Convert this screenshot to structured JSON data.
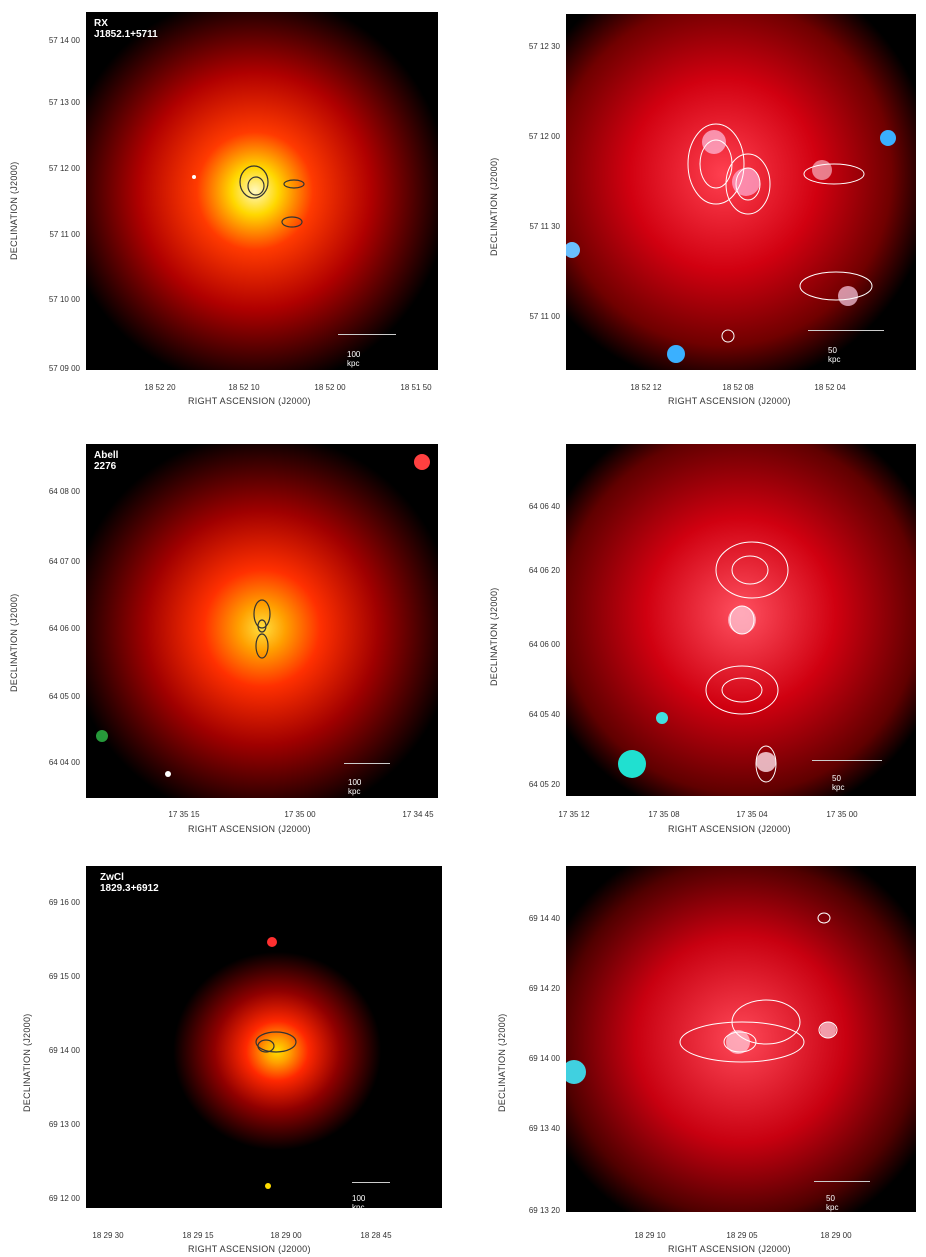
{
  "panels": [
    {
      "title": "RX J1852.1+5711",
      "scale": "100 kpc",
      "yticks": [
        "57 14 00",
        "57 13 00",
        "57 12 00",
        "57 11 00",
        "57 10 00",
        "57 09 00"
      ],
      "xticks": [
        "18 52 20",
        "18 52 10",
        "18 52 00",
        "18 51 50"
      ]
    },
    {
      "title": "",
      "scale": "50 kpc",
      "yticks": [
        "57 12 30",
        "57 12 00",
        "57 11 30",
        "57 11 00"
      ],
      "xticks": [
        "18 52 12",
        "18 52 08",
        "18 52 04"
      ]
    },
    {
      "title": "Abell 2276",
      "scale": "100 kpc",
      "yticks": [
        "64 08 00",
        "64 07 00",
        "64 06 00",
        "64 05 00",
        "64 04 00"
      ],
      "xticks": [
        "17 35 15",
        "17 35 00",
        "17 34 45"
      ]
    },
    {
      "title": "",
      "scale": "50 kpc",
      "yticks": [
        "64 06 40",
        "64 06 20",
        "64 06 00",
        "64 05 40",
        "64 05 20"
      ],
      "xticks": [
        "17 35 12",
        "17 35 08",
        "17 35 04",
        "17 35 00"
      ]
    },
    {
      "title": "ZwCl 1829.3+6912",
      "scale": "100 kpc",
      "yticks": [
        "69 16 00",
        "69 15 00",
        "69 14 00",
        "69 13 00",
        "69 12 00"
      ],
      "xticks": [
        "18 29 30",
        "18 29 15",
        "18 29 00",
        "18 28 45"
      ]
    },
    {
      "title": "",
      "scale": "50 kpc",
      "yticks": [
        "69 14 40",
        "69 14 20",
        "69 14 00",
        "69 13 40",
        "69 13 20"
      ],
      "xticks": [
        "18 29 10",
        "18 29 05",
        "18 29 00"
      ]
    }
  ],
  "axis": {
    "xlabel": "RIGHT ASCENSION  (J2000)",
    "ylabel": "DECLINATION  (J2000)"
  }
}
